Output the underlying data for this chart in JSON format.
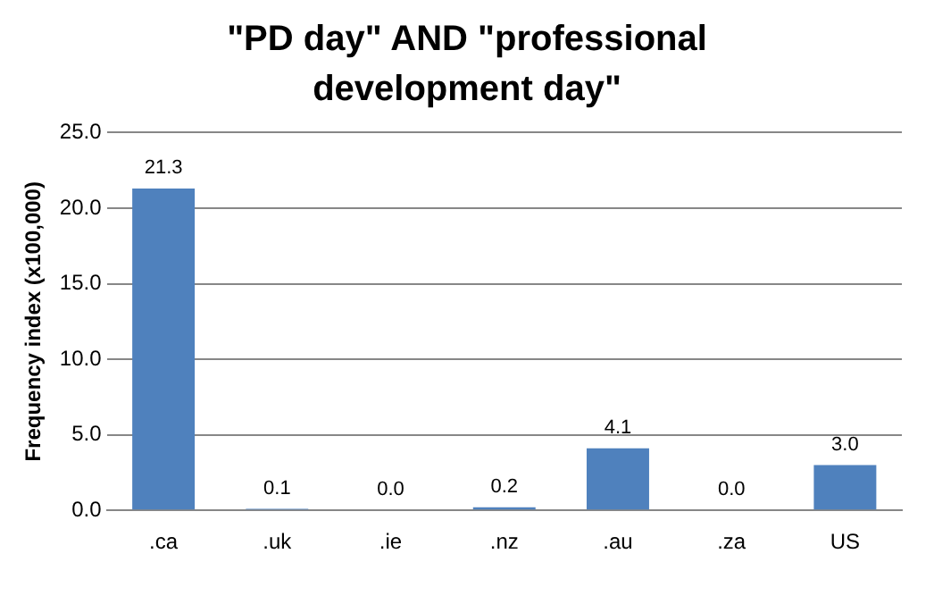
{
  "chart_data": {
    "type": "bar",
    "title": "\"PD day\" AND \"professional development day\"",
    "ylabel": "Frequency index (x100,000)",
    "categories": [
      ".ca",
      ".uk",
      ".ie",
      ".nz",
      ".au",
      ".za",
      "US"
    ],
    "values": [
      21.3,
      0.1,
      0.0,
      0.2,
      4.1,
      0.0,
      3.0
    ],
    "value_labels": [
      "21.3",
      "0.1",
      "0.0",
      "0.2",
      "4.1",
      "0.0",
      "3.0"
    ],
    "color": "#4f81bd",
    "ylim": [
      0,
      25
    ],
    "yticks": [
      {
        "value": 0,
        "label": "0.0"
      },
      {
        "value": 5,
        "label": "5.0"
      },
      {
        "value": 10,
        "label": "10.0"
      },
      {
        "value": 15,
        "label": "15.0"
      },
      {
        "value": 20,
        "label": "20.0"
      },
      {
        "value": 25,
        "label": "25.0"
      }
    ],
    "grid": "y",
    "legend": false
  }
}
